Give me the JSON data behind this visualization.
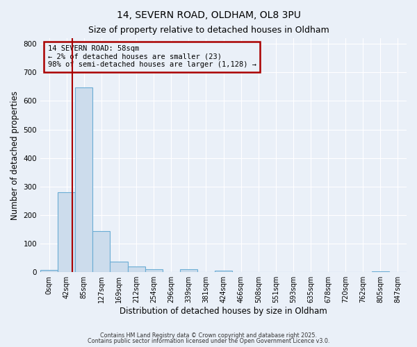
{
  "title": "14, SEVERN ROAD, OLDHAM, OL8 3PU",
  "subtitle": "Size of property relative to detached houses in Oldham",
  "xlabel": "Distribution of detached houses by size in Oldham",
  "ylabel": "Number of detached properties",
  "bar_values": [
    7,
    280,
    648,
    143,
    37,
    20,
    10,
    0,
    10,
    0,
    5,
    0,
    0,
    0,
    0,
    0,
    0,
    0,
    0,
    2,
    0
  ],
  "bar_categories": [
    "0sqm",
    "42sqm",
    "85sqm",
    "127sqm",
    "169sqm",
    "212sqm",
    "254sqm",
    "296sqm",
    "339sqm",
    "381sqm",
    "424sqm",
    "466sqm",
    "508sqm",
    "551sqm",
    "593sqm",
    "635sqm",
    "678sqm",
    "720sqm",
    "762sqm",
    "805sqm",
    "847sqm"
  ],
  "bar_color": "#ccdcec",
  "bar_edge_color": "#6aacd4",
  "background_color": "#eaf0f8",
  "annotation_line1": "14 SEVERN ROAD: 58sqm",
  "annotation_line2": "← 2% of detached houses are smaller (23)",
  "annotation_line3": "98% of semi-detached houses are larger (1,128) →",
  "annotation_box_color": "#aa0000",
  "vline_color": "#aa0000",
  "vline_bar_index": 1,
  "ylim": [
    0,
    820
  ],
  "yticks": [
    0,
    100,
    200,
    300,
    400,
    500,
    600,
    700,
    800
  ],
  "footnote1": "Contains HM Land Registry data © Crown copyright and database right 2025.",
  "footnote2": "Contains public sector information licensed under the Open Government Licence v3.0.",
  "grid_color": "#ffffff",
  "title_fontsize": 10,
  "subtitle_fontsize": 9,
  "tick_fontsize": 7,
  "axis_label_fontsize": 8.5
}
